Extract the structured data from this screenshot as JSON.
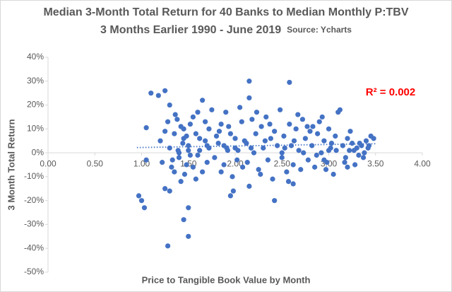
{
  "chart_data": {
    "type": "scatter",
    "title": "Median 3-Month Total Return for 40 Banks to Median Monthly P:TBV",
    "subtitle": "3 Months Earlier 1990 - June 2019",
    "source": "Source: Ycharts",
    "x_label": "Price to Tangible Book Value by Month",
    "y_label": "3 Month Total Return",
    "annotation": "R² = 0.002",
    "color": "#4472c4",
    "trendline": {
      "x": [
        0.95,
        3.5
      ],
      "values": [
        2.2,
        3.8
      ]
    },
    "xlim": [
      0,
      4
    ],
    "ylim": [
      -50,
      40
    ],
    "xticks": [
      {
        "value": 0,
        "label": "0.00"
      },
      {
        "value": 0.5,
        "label": "0.50"
      },
      {
        "value": 1,
        "label": "1.00"
      },
      {
        "value": 1.5,
        "label": "1.50"
      },
      {
        "value": 2,
        "label": "2.00"
      },
      {
        "value": 2.5,
        "label": "2.50"
      },
      {
        "value": 3,
        "label": "3.00"
      },
      {
        "value": 3.5,
        "label": "3.50"
      },
      {
        "value": 4,
        "label": "4.00"
      }
    ],
    "yticks": [
      {
        "value": -50,
        "label": "-50%"
      },
      {
        "value": -40,
        "label": "-40%"
      },
      {
        "value": -30,
        "label": "-30%"
      },
      {
        "value": -20,
        "label": "-20%"
      },
      {
        "value": -10,
        "label": "-10%"
      },
      {
        "value": 0,
        "label": "0%"
      },
      {
        "value": 10,
        "label": "10%"
      },
      {
        "value": 20,
        "label": "20%"
      },
      {
        "value": 30,
        "label": "30%"
      },
      {
        "value": 40,
        "label": "40%"
      }
    ],
    "x": [
      0.97,
      1.0,
      1.03,
      1.05,
      1.05,
      1.1,
      1.18,
      1.25,
      1.28,
      1.25,
      1.3,
      1.45,
      1.5,
      1.5,
      2.15,
      2.15,
      2.58,
      2.42,
      2.62,
      1.95,
      1.2,
      1.22,
      1.25,
      1.28,
      1.3,
      1.32,
      1.35,
      1.38,
      1.4,
      1.42,
      1.44,
      1.46,
      1.48,
      1.3,
      1.33,
      1.36,
      1.39,
      1.42,
      1.45,
      1.48,
      1.5,
      1.52,
      1.55,
      1.58,
      1.6,
      1.62,
      1.65,
      1.68,
      1.7,
      1.72,
      1.55,
      1.58,
      1.62,
      1.65,
      1.68,
      1.72,
      1.75,
      1.78,
      1.8,
      1.52,
      1.82,
      1.85,
      1.88,
      1.9,
      1.92,
      1.95,
      1.98,
      2.0,
      2.02,
      2.05,
      1.85,
      1.88,
      1.93,
      1.97,
      2.03,
      2.07,
      2.1,
      1.83,
      1.91,
      2.08,
      2.12,
      2.15,
      2.18,
      2.2,
      2.22,
      2.25,
      2.28,
      2.3,
      2.33,
      2.35,
      2.38,
      2.4,
      2.42,
      2.13,
      2.17,
      2.23,
      2.27,
      2.32,
      2.37,
      2.45,
      2.48,
      2.5,
      2.52,
      2.55,
      2.58,
      2.6,
      2.62,
      2.65,
      2.68,
      2.7,
      2.72,
      2.75,
      2.78,
      2.8,
      2.53,
      2.57,
      2.63,
      2.67,
      2.73,
      2.77,
      2.82,
      2.85,
      2.88,
      2.9,
      2.92,
      2.95,
      2.98,
      3.0,
      3.02,
      3.05,
      3.07,
      3.1,
      2.83,
      2.87,
      2.93,
      2.97,
      3.03,
      3.08,
      3.12,
      2.95,
      3.15,
      3.18,
      3.2,
      3.22,
      3.25,
      3.28,
      3.3,
      3.32,
      3.35,
      3.38,
      3.4,
      3.42,
      3.45,
      3.48,
      3.17,
      3.23,
      3.27,
      3.33,
      3.37,
      3.43,
      1.4,
      1.5,
      1.6,
      1.7,
      2.0,
      2.5,
      3.0,
      3.2,
      1.35,
      1.45
    ],
    "values": [
      -18,
      -20,
      -23,
      -3,
      10.5,
      25,
      24,
      26,
      -39,
      -15,
      -16,
      -28,
      -35,
      -23,
      30,
      23,
      29.5,
      -20,
      -13,
      -18,
      5,
      -4,
      9,
      13,
      2,
      -6,
      8,
      14,
      -2,
      11,
      4,
      -9,
      7,
      20,
      -3,
      16,
      1,
      -12,
      10,
      -5,
      3,
      12,
      -6,
      8,
      17,
      1,
      22,
      5,
      -4,
      10,
      15,
      -11,
      6,
      -8,
      13,
      2,
      18,
      -2,
      7,
      -1,
      4,
      12,
      -5,
      17,
      1,
      8,
      -16,
      6,
      -3,
      19,
      -8,
      3,
      11,
      -10,
      1,
      13,
      5,
      9,
      2,
      -6,
      4,
      -14,
      14,
      0,
      8,
      -7,
      11,
      2,
      15,
      -3,
      6,
      -11,
      9,
      -4,
      2,
      17,
      -9,
      5,
      12,
      3,
      18,
      -2,
      7,
      -8,
      12,
      3,
      -5,
      10,
      1,
      -7,
      14,
      6,
      -3,
      9,
      2,
      -12,
      5,
      16,
      0,
      11,
      3,
      -6,
      8,
      13,
      0,
      5,
      -4,
      10,
      2,
      -9,
      7,
      17,
      11,
      -1,
      15,
      -7,
      4,
      1,
      18,
      -3,
      3,
      -2,
      6,
      1,
      4,
      -5,
      2,
      -1,
      3,
      0,
      5,
      2,
      7,
      6,
      -4,
      9,
      1,
      4,
      -2,
      3,
      0,
      1,
      -1,
      3,
      2,
      0,
      1,
      -6,
      -8,
      6
    ]
  }
}
